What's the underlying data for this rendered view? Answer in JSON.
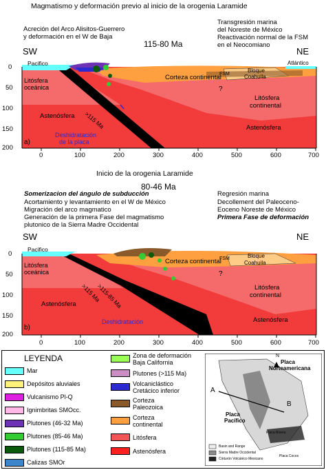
{
  "panel_a": {
    "title": "Magmatismo y deformación previo al inicio de la orogenia Laramide",
    "left_note_1": "Acreción del Arco Alisitos-Guerrero",
    "left_note_2": "y deformación en el W de Baja",
    "right_note_1": "Transgresión marina",
    "right_note_2": "del Noreste de México",
    "right_note_3": "Reactivación normal de la FSM",
    "right_note_4": "en el Neocomiano",
    "age": "115-80 Ma",
    "sw": "SW",
    "ne": "NE",
    "pacific": "Pacifico",
    "atlantic": "Atlántico",
    "corteza": "Corteza continental",
    "bloque_1": "Bloque",
    "bloque_2": "Coahuila",
    "fsm": "FSM",
    "question": "?",
    "litosfera_oceanica_1": "Litósfera",
    "litosfera_oceanica_2": "oceánica",
    "litosfera_continental_1": "Litósfera",
    "litosfera_continental_2": "continental",
    "astenosfera_left": "Astenósfera",
    "astenosfera_right": "Astenósfera",
    "slab_age": ">115 Ma",
    "delam_1": "Deshidratación",
    "delam_2": "de la placa",
    "panel_letter": "a)"
  },
  "panel_b": {
    "title": "Inicio de la orogenia Laramide",
    "age": "80-46 Ma",
    "left_note_1": "Somerizacion del ángulo de subducción",
    "left_note_2": "Acortamiento y levantamiento en el W de México",
    "left_note_3": "Migración del arco magmatico",
    "left_note_4": "Generación de la primera Fase del magmatismo",
    "left_note_5": "plutonico de la Sierra Madre Occidental",
    "right_note_1": "Regresión marina",
    "right_note_2": "Decollement del Paleoceno-",
    "right_note_3": "Eoceno Noreste de México",
    "right_note_4": "Primera Fase de deformación",
    "sw": "SW",
    "ne": "NE",
    "pacific": "Pacifico",
    "corteza": "Corteza continental",
    "bloque_1": "Bloque",
    "bloque_2": "Coahuila",
    "fsm": "FSM",
    "question": "?",
    "litosfera_oceanica_1": "Litósfera",
    "litosfera_oceanica_2": "oceánica",
    "litosfera_continental_1": "Litósfera",
    "litosfera_continental_2": "continental",
    "astenosfera_left": "Astenósfera",
    "astenosfera_right": "Astenósfera",
    "slab_age_1": ">115 Ma",
    "slab_age_2": ">115-85 Ma",
    "delam": "Deshidratación",
    "panel_letter": "b)"
  },
  "axes": {
    "x_ticks": [
      "0",
      "100",
      "200",
      "300",
      "400",
      "500",
      "600",
      "700"
    ],
    "y_ticks": [
      "0",
      "50",
      "100",
      "150",
      "200"
    ]
  },
  "legend": {
    "title": "LEYENDA",
    "items_left": [
      {
        "label": "Mar",
        "color": "#66ffff"
      },
      {
        "label": "Depósitos aluviales",
        "color": "#fff27a"
      },
      {
        "label": "Vulcanismo Pl-Q",
        "color": "#e020e0"
      },
      {
        "label": "Ignimbritas SMOcc.",
        "color": "#ffb8e8"
      },
      {
        "label": "Plutones (46-32 Ma)",
        "color": "#6e32b4"
      },
      {
        "label": "Plutones (85-46 Ma)",
        "color": "#33cc33"
      },
      {
        "label": "Plutones (115-85 Ma)",
        "color": "#0b5a0b"
      },
      {
        "label": "Calizas SMOr",
        "color": "#3d86ce"
      }
    ],
    "items_mid": [
      {
        "label_1": "Zona de deformación",
        "label_2": "Baja California",
        "color": "#9aff55"
      },
      {
        "label_1": "Plutones (>115 Ma)",
        "label_2": "",
        "color": "#c98dc4"
      },
      {
        "label_1": "Volcaniclástico",
        "label_2": "Cretácico inferior",
        "color": "#2a2ad0"
      },
      {
        "label_1": "Corteza",
        "label_2": "Paleozoica",
        "color": "#8b5a2b"
      },
      {
        "label_1": "Corteza",
        "label_2": "continental",
        "color": "#ffa040"
      },
      {
        "label_1": "Litósfera",
        "label_2": "",
        "color": "#f25555"
      },
      {
        "label_1": "Astenósfera",
        "label_2": "",
        "color": "#ff2020"
      }
    ]
  },
  "map": {
    "plate_na_1": "Placa",
    "plate_na_2": "Norteamericana",
    "plate_pac_1": "Placa",
    "plate_pac_2": "Pacífico",
    "label_a": "A",
    "label_b": "B",
    "north": "N",
    "placa_rivera": "Placa Rivera",
    "placa_cocos": "Placa Cocos",
    "leg_1": "Basin and Range",
    "leg_2": "Sierra Madre Occidental",
    "leg_3": "Cinturón Volcánico Mexicano"
  }
}
